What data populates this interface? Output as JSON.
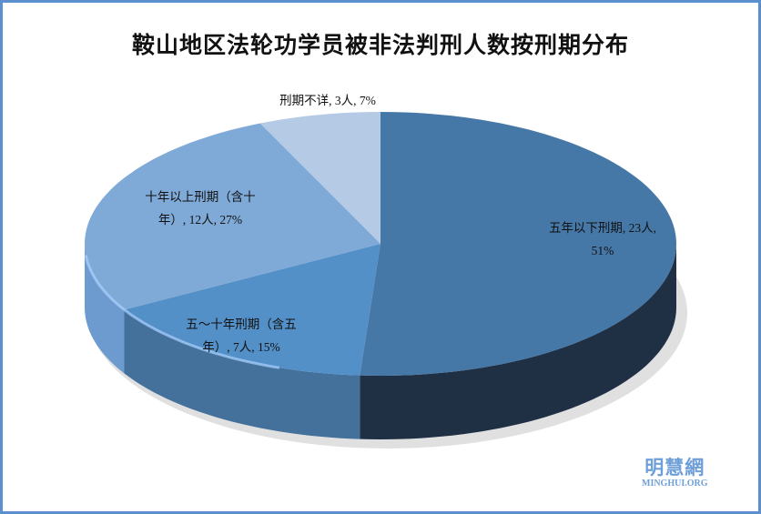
{
  "chart_data": {
    "type": "pie",
    "style": "3d",
    "title": "鞍山地区法轮功学员被非法判刑人数按刑期分布",
    "slices": [
      {
        "label": "五年以下刑期",
        "value": 23,
        "percent": "51%",
        "data_label_line1": "五年以下刑期, 23人,",
        "data_label_line2": "51%",
        "color": "#4577a7",
        "side_color": "#1f3045"
      },
      {
        "label": "五～十年刑期（含五年）",
        "value": 7,
        "percent": "15%",
        "data_label_line1": "五～十年刑期（含五",
        "data_label_line2": "年）, 7人, 15%",
        "color": "#5490c8",
        "side_color": "#44709c"
      },
      {
        "label": "十年以上刑期（含十年）",
        "value": 12,
        "percent": "27%",
        "data_label_line1": "十年以上刑期（含十",
        "data_label_line2": "年）, 12人, 27%",
        "color": "#7faad7",
        "side_color": "#6e9bcf"
      },
      {
        "label": "刑期不详",
        "value": 3,
        "percent": "7%",
        "data_label_line1": "刑期不详, 3人, 7%",
        "data_label_line2": "",
        "color": "#b5cae5",
        "side_color": "#9fb8da"
      }
    ],
    "start_angle": "12 o'clock",
    "direction": "clockwise",
    "legend": "none"
  },
  "watermark": {
    "cn": "明慧網",
    "en": "MINGHUI.ORG"
  },
  "border_color": "#5b8fd0"
}
